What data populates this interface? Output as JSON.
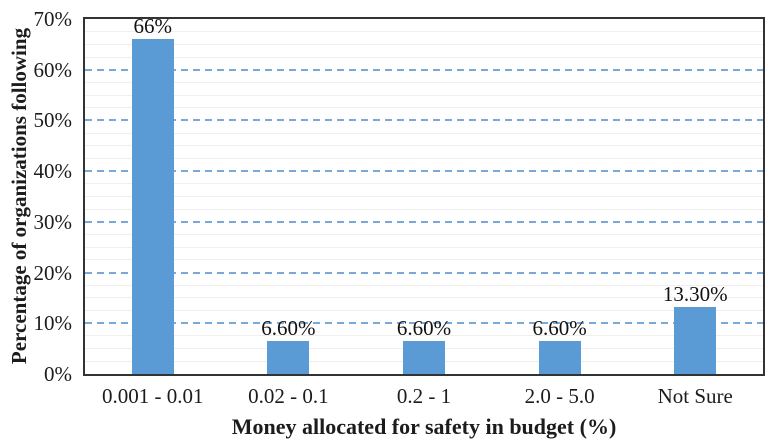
{
  "chart_data": {
    "type": "bar",
    "title": "",
    "xlabel": "Money allocated for safety in budget (%)",
    "ylabel": "Percentage of organizations following",
    "categories": [
      "0.001 - 0.01",
      "0.02 - 0.1",
      "0.2 - 1",
      "2.0 - 5.0",
      "Not Sure"
    ],
    "values": [
      66,
      6.6,
      6.6,
      6.6,
      13.3
    ],
    "value_labels": [
      "66%",
      "6.60%",
      "6.60%",
      "6.60%",
      "13.30%"
    ],
    "ylim": [
      0,
      70
    ],
    "yticks": [
      0,
      10,
      20,
      30,
      40,
      50,
      60,
      70
    ],
    "ytick_labels": [
      "0%",
      "10%",
      "20%",
      "30%",
      "40%",
      "50%",
      "60%",
      "70%"
    ],
    "major_gridlines": [
      10,
      20,
      30,
      40,
      50,
      60
    ],
    "minor_grid_step": 2.5,
    "grid": "on",
    "legend": "none",
    "colors": {
      "bar_fill": "#5b9bd5",
      "major_gridline": "#7aa9d8",
      "minor_gridline": "#f0efec",
      "plot_border": "#333333",
      "text": "#1c1c1c",
      "background": "#ffffff"
    }
  }
}
